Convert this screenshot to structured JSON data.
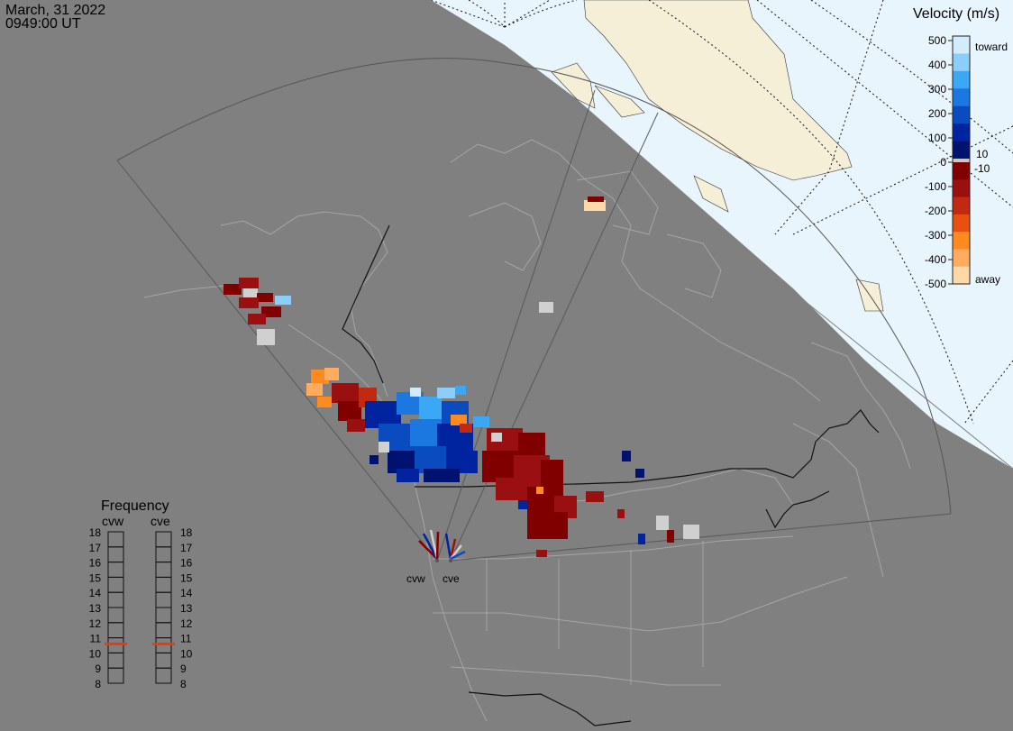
{
  "header": {
    "date": "March, 31 2022",
    "time": "0949:00 UT"
  },
  "colors": {
    "background": "#808080",
    "night_map_land": "#808080",
    "day_ocean": "#e8f5fc",
    "day_land": "#f5efd8",
    "boundary_line": "#a0a0a0",
    "fov_line": "#585858",
    "frequency_marker": "#e04010"
  },
  "velocity_scale": {
    "title": "Velocity (m/s)",
    "ticks": [
      "500",
      "400",
      "300",
      "200",
      "100",
      "0",
      "-100",
      "-200",
      "-300",
      "-400",
      "-500"
    ],
    "toward_label": "toward",
    "away_label": "away",
    "near_zero_pos": "10",
    "near_zero_neg": "-10",
    "colors_toward": [
      "#d2ecfc",
      "#8ccefa",
      "#3aa8f5",
      "#1a78e0",
      "#0a4cc0",
      "#0024a0",
      "#001270"
    ],
    "colors_away": [
      "#ffd8a8",
      "#ffac60",
      "#ff8a20",
      "#e85010",
      "#c02a10",
      "#9a1010",
      "#800000"
    ]
  },
  "frequency": {
    "title": "Frequency",
    "radars": [
      {
        "name": "cvw",
        "freq_mhz": 10.6
      },
      {
        "name": "cve",
        "freq_mhz": 10.6
      }
    ],
    "ticks": [
      "18",
      "17",
      "16",
      "15",
      "14",
      "13",
      "12",
      "11",
      "10",
      "9",
      "8"
    ]
  },
  "radar_sites": [
    {
      "name": "cvw"
    },
    {
      "name": "cve"
    }
  ]
}
